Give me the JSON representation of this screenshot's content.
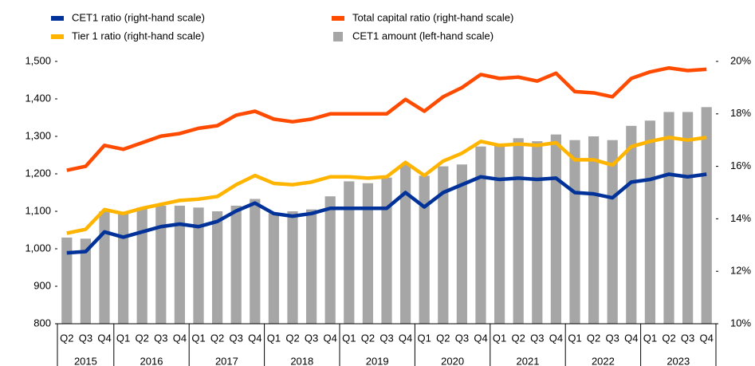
{
  "chart_data": {
    "type": "bar_line",
    "categories": [
      "Q2",
      "Q3",
      "Q4",
      "Q1",
      "Q2",
      "Q3",
      "Q4",
      "Q1",
      "Q2",
      "Q3",
      "Q4",
      "Q1",
      "Q2",
      "Q3",
      "Q4",
      "Q1",
      "Q2",
      "Q3",
      "Q4",
      "Q1",
      "Q2",
      "Q3",
      "Q4",
      "Q1",
      "Q2",
      "Q3",
      "Q4",
      "Q1",
      "Q2",
      "Q3",
      "Q4",
      "Q1",
      "Q2",
      "Q3",
      "Q4"
    ],
    "years": [
      "2015",
      "2016",
      "2017",
      "2018",
      "2019",
      "2020",
      "2021",
      "2022",
      "2023"
    ],
    "year_spans": [
      3,
      4,
      4,
      4,
      4,
      4,
      4,
      4,
      4
    ],
    "series": [
      {
        "name": "CET1 ratio (right-hand scale)",
        "color": "#003299",
        "axis": "y2",
        "kind": "line",
        "values": [
          12.7,
          12.75,
          13.5,
          13.3,
          13.5,
          13.7,
          13.8,
          13.7,
          13.9,
          14.3,
          14.6,
          14.2,
          14.1,
          14.2,
          14.4,
          14.4,
          14.4,
          14.4,
          15.0,
          14.45,
          15.0,
          15.3,
          15.6,
          15.5,
          15.55,
          15.5,
          15.55,
          15.0,
          14.95,
          14.8,
          15.4,
          15.5,
          15.7,
          15.6,
          15.7
        ]
      },
      {
        "name": "Total capital ratio (right-hand scale)",
        "color": "#ff4b00",
        "axis": "y2",
        "kind": "line",
        "values": [
          15.85,
          16.0,
          16.8,
          16.65,
          16.9,
          17.15,
          17.25,
          17.45,
          17.55,
          17.95,
          18.1,
          17.8,
          17.7,
          17.8,
          18.0,
          18.0,
          18.0,
          18.0,
          18.55,
          18.1,
          18.65,
          19.0,
          19.5,
          19.35,
          19.4,
          19.25,
          19.55,
          18.85,
          18.8,
          18.65,
          19.35,
          19.6,
          19.75,
          19.65,
          19.7
        ]
      },
      {
        "name": "Tier 1 ratio (right-hand scale)",
        "color": "#ffb400",
        "axis": "y2",
        "kind": "line",
        "values": [
          13.45,
          13.6,
          14.35,
          14.2,
          14.4,
          14.55,
          14.7,
          14.75,
          14.85,
          15.3,
          15.65,
          15.35,
          15.3,
          15.4,
          15.6,
          15.6,
          15.55,
          15.6,
          16.15,
          15.65,
          16.2,
          16.5,
          16.95,
          16.8,
          16.85,
          16.8,
          16.9,
          16.25,
          16.25,
          16.05,
          16.75,
          16.95,
          17.1,
          17.0,
          17.1
        ]
      },
      {
        "name": "CET1 amount (left-hand scale)",
        "color": "#a6a6a6",
        "axis": "y",
        "kind": "bar",
        "values": [
          1030,
          1027,
          1100,
          1095,
          1110,
          1115,
          1115,
          1110,
          1100,
          1115,
          1133,
          1095,
          1100,
          1105,
          1140,
          1180,
          1175,
          1190,
          1225,
          1195,
          1220,
          1225,
          1273,
          1275,
          1295,
          1287,
          1305,
          1290,
          1300,
          1290,
          1328,
          1342,
          1365,
          1365,
          1378
        ]
      }
    ],
    "ylim": [
      800,
      1500
    ],
    "yticks": [
      800,
      900,
      {
        "value": 1000,
        "label": "1,000"
      },
      {
        "value": 1100,
        "label": "1,100"
      },
      {
        "value": 1200,
        "label": "1,200"
      },
      {
        "value": 1300,
        "label": "1,300"
      },
      {
        "value": 1400,
        "label": "1,400"
      },
      {
        "value": 1500,
        "label": "1,500"
      }
    ],
    "y2lim": [
      10,
      20
    ],
    "y2ticks": [
      {
        "value": 10,
        "label": "10%"
      },
      {
        "value": 12,
        "label": "12%"
      },
      {
        "value": 14,
        "label": "14%"
      },
      {
        "value": 16,
        "label": "16%"
      },
      {
        "value": 18,
        "label": "18%"
      },
      {
        "value": 20,
        "label": "20%"
      }
    ],
    "legend": "top"
  }
}
